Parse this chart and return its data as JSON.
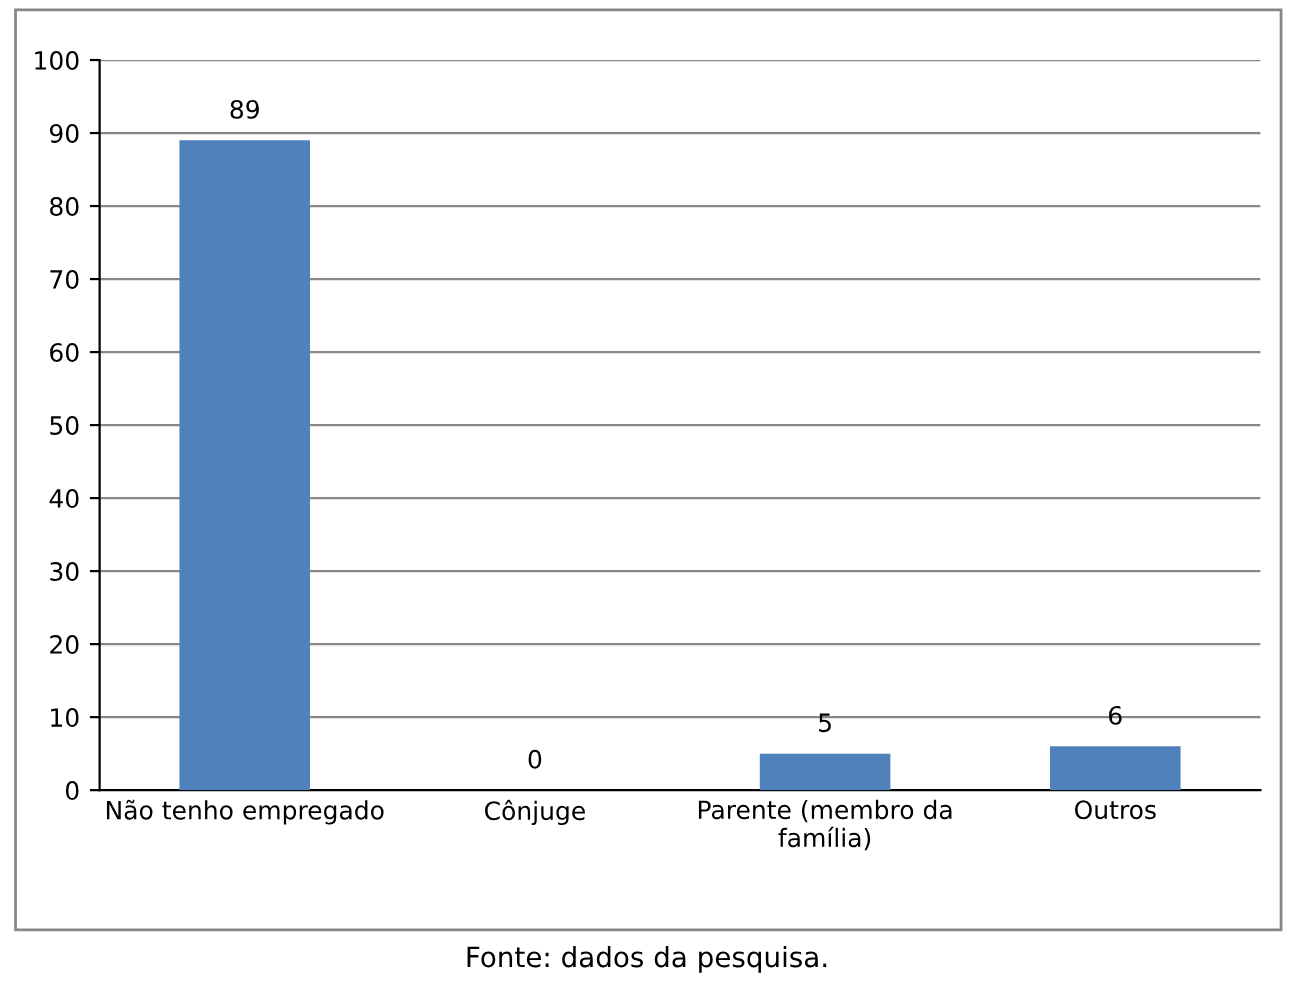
{
  "chart_data": {
    "type": "bar",
    "categories": [
      "Não tenho empregado",
      "Cônjuge",
      "Parente (membro da\nfamília)",
      "Outros"
    ],
    "values": [
      89,
      0,
      5,
      6
    ],
    "color": "#4f81bd",
    "ylim": [
      0,
      100
    ],
    "yticks": [
      0,
      10,
      20,
      30,
      40,
      50,
      60,
      70,
      80,
      90,
      100
    ],
    "grid": "y",
    "data_labels": true,
    "legend": false,
    "annotations": [
      "Fonte: dados da pesquisa."
    ]
  }
}
